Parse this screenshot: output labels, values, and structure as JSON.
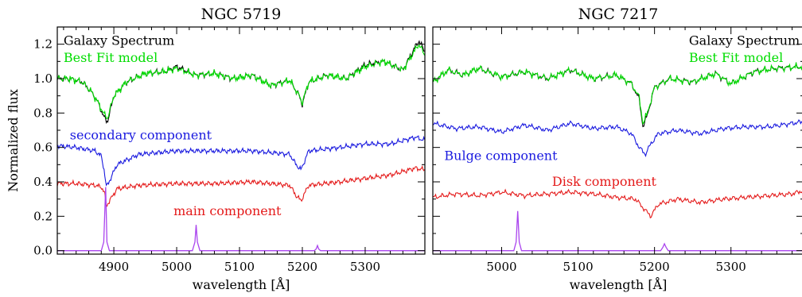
{
  "chart_data": [
    {
      "type": "line",
      "title": "NGC 5719",
      "xlabel": "wavelength [Å]",
      "ylabel": "Normalized flux",
      "xlim": [
        4810,
        5395
      ],
      "ylim": [
        -0.02,
        1.3
      ],
      "xticks": [
        4900,
        5000,
        5100,
        5200,
        5300
      ],
      "yticks": [
        0.0,
        0.2,
        0.4,
        0.6,
        0.8,
        1.0,
        1.2
      ],
      "ytick_labels": [
        "0.0",
        "0.2",
        "0.4",
        "0.6",
        "0.8",
        "1.0",
        "1.2"
      ],
      "grid": false,
      "series": [
        {
          "name": "Galaxy Spectrum",
          "color": "#000000",
          "x": [
            4810,
            4830,
            4850,
            4865,
            4875,
            4885,
            4890,
            4900,
            4920,
            4950,
            4980,
            5000,
            5030,
            5060,
            5090,
            5120,
            5150,
            5180,
            5195,
            5200,
            5210,
            5240,
            5270,
            5300,
            5330,
            5360,
            5385,
            5395
          ],
          "y": [
            1.0,
            1.0,
            0.98,
            0.92,
            0.86,
            0.77,
            0.75,
            0.9,
            0.98,
            1.03,
            1.04,
            1.07,
            1.02,
            1.03,
            1.0,
            1.02,
            0.96,
            0.99,
            0.9,
            0.85,
            0.98,
            1.02,
            1.0,
            1.08,
            1.1,
            1.05,
            1.22,
            1.16
          ]
        },
        {
          "name": "Best Fit model",
          "color": "#00dd00",
          "x": [
            4810,
            4830,
            4850,
            4865,
            4875,
            4885,
            4890,
            4900,
            4920,
            4950,
            4980,
            5000,
            5030,
            5060,
            5090,
            5120,
            5150,
            5180,
            5195,
            5200,
            5210,
            5240,
            5270,
            5300,
            5330,
            5360,
            5385,
            5395
          ],
          "y": [
            1.0,
            1.0,
            0.98,
            0.92,
            0.86,
            0.79,
            0.77,
            0.9,
            0.98,
            1.03,
            1.04,
            1.06,
            1.02,
            1.03,
            1.0,
            1.02,
            0.96,
            0.99,
            0.9,
            0.86,
            0.98,
            1.02,
            1.0,
            1.07,
            1.1,
            1.05,
            1.2,
            1.14
          ]
        },
        {
          "name": "secondary component",
          "color": "#1a1adf",
          "x": [
            4810,
            4840,
            4870,
            4880,
            4885,
            4888,
            4895,
            4905,
            4940,
            5000,
            5060,
            5120,
            5180,
            5190,
            5198,
            5210,
            5260,
            5300,
            5340,
            5380,
            5395
          ],
          "y": [
            0.61,
            0.6,
            0.58,
            0.55,
            0.46,
            0.37,
            0.42,
            0.5,
            0.56,
            0.58,
            0.58,
            0.58,
            0.56,
            0.5,
            0.47,
            0.58,
            0.6,
            0.62,
            0.62,
            0.66,
            0.64
          ]
        },
        {
          "name": "main component",
          "color": "#e41a1a",
          "x": [
            4810,
            4840,
            4870,
            4880,
            4885,
            4888,
            4895,
            4905,
            4940,
            5000,
            5060,
            5120,
            5180,
            5190,
            5198,
            5210,
            5260,
            5300,
            5340,
            5380,
            5395
          ],
          "y": [
            0.39,
            0.39,
            0.38,
            0.37,
            0.34,
            0.26,
            0.3,
            0.36,
            0.38,
            0.39,
            0.39,
            0.4,
            0.38,
            0.32,
            0.29,
            0.38,
            0.4,
            0.42,
            0.44,
            0.48,
            0.47
          ]
        },
        {
          "name": "",
          "color": "#aa44ee",
          "x": [
            4810,
            4880,
            4884,
            4887,
            4889,
            4893,
            5025,
            5029,
            5031,
            5033,
            5037,
            5219,
            5222,
            5224,
            5226,
            5229,
            5395
          ],
          "y": [
            0.0,
            0.0,
            0.05,
            0.37,
            0.05,
            0.0,
            0.0,
            0.05,
            0.15,
            0.05,
            0.0,
            0.0,
            0.01,
            0.03,
            0.01,
            0.0,
            0.0
          ]
        }
      ],
      "annotations": [
        {
          "text": "Galaxy Spectrum",
          "color": "#000000",
          "x": 4820,
          "y": 1.22
        },
        {
          "text": "Best Fit model",
          "color": "#00dd00",
          "x": 4820,
          "y": 1.12
        },
        {
          "text": "secondary component",
          "color": "#1a1adf",
          "x": 4830,
          "y": 0.67
        },
        {
          "text": "main component",
          "color": "#e41a1a",
          "x": 4995,
          "y": 0.23
        }
      ]
    },
    {
      "type": "line",
      "title": "NGC 7217",
      "xlabel": "wavelength [Å]",
      "ylabel": "",
      "xlim": [
        4910,
        5395
      ],
      "ylim": [
        -0.02,
        1.3
      ],
      "xticks": [
        5000,
        5100,
        5200,
        5300
      ],
      "grid": false,
      "series": [
        {
          "name": "Galaxy Spectrum",
          "color": "#000000",
          "x": [
            4910,
            4930,
            4950,
            4970,
            5000,
            5030,
            5060,
            5090,
            5120,
            5150,
            5170,
            5180,
            5185,
            5190,
            5200,
            5220,
            5250,
            5280,
            5300,
            5330,
            5360,
            5395
          ],
          "y": [
            0.98,
            1.05,
            1.02,
            1.06,
            1.01,
            1.04,
            1.0,
            1.05,
            1.0,
            1.02,
            0.97,
            0.88,
            0.72,
            0.78,
            0.95,
            1.0,
            0.98,
            1.03,
            0.97,
            1.04,
            1.06,
            1.07
          ]
        },
        {
          "name": "Best Fit model",
          "color": "#00dd00",
          "x": [
            4910,
            4930,
            4950,
            4970,
            5000,
            5030,
            5060,
            5090,
            5120,
            5150,
            5170,
            5180,
            5185,
            5190,
            5200,
            5220,
            5250,
            5280,
            5300,
            5330,
            5360,
            5395
          ],
          "y": [
            0.98,
            1.05,
            1.02,
            1.06,
            1.01,
            1.04,
            1.0,
            1.05,
            1.0,
            1.02,
            0.97,
            0.89,
            0.74,
            0.79,
            0.95,
            1.0,
            0.98,
            1.03,
            0.97,
            1.04,
            1.06,
            1.07
          ]
        },
        {
          "name": "Bulge component",
          "color": "#1a1adf",
          "x": [
            4910,
            4940,
            4970,
            5000,
            5030,
            5060,
            5090,
            5120,
            5150,
            5170,
            5180,
            5188,
            5195,
            5205,
            5230,
            5260,
            5290,
            5320,
            5350,
            5380,
            5395
          ],
          "y": [
            0.74,
            0.71,
            0.72,
            0.69,
            0.73,
            0.7,
            0.74,
            0.71,
            0.72,
            0.68,
            0.6,
            0.56,
            0.62,
            0.68,
            0.7,
            0.68,
            0.71,
            0.72,
            0.72,
            0.74,
            0.75
          ]
        },
        {
          "name": "Disk component",
          "color": "#e41a1a",
          "x": [
            4910,
            4940,
            4970,
            5000,
            5030,
            5060,
            5090,
            5120,
            5150,
            5175,
            5185,
            5195,
            5205,
            5230,
            5260,
            5290,
            5320,
            5350,
            5380,
            5395
          ],
          "y": [
            0.31,
            0.33,
            0.32,
            0.34,
            0.32,
            0.33,
            0.34,
            0.33,
            0.31,
            0.3,
            0.25,
            0.2,
            0.27,
            0.3,
            0.28,
            0.3,
            0.31,
            0.32,
            0.33,
            0.35
          ]
        },
        {
          "name": "",
          "color": "#aa44ee",
          "x": [
            4910,
            5016,
            5019,
            5021,
            5023,
            5026,
            5208,
            5211,
            5213,
            5215,
            5218,
            5395
          ],
          "y": [
            0.0,
            0.0,
            0.05,
            0.23,
            0.05,
            0.0,
            0.0,
            0.02,
            0.04,
            0.02,
            0.0,
            0.0
          ]
        }
      ],
      "annotations": [
        {
          "text": "Galaxy Spectrum",
          "color": "#000000",
          "x": 5245,
          "y": 1.22
        },
        {
          "text": "Best Fit model",
          "color": "#00dd00",
          "x": 5245,
          "y": 1.12
        },
        {
          "text": "Bulge component",
          "color": "#1a1adf",
          "x": 4925,
          "y": 0.55
        },
        {
          "text": "Disk component",
          "color": "#e41a1a",
          "x": 5066,
          "y": 0.4
        }
      ]
    }
  ]
}
